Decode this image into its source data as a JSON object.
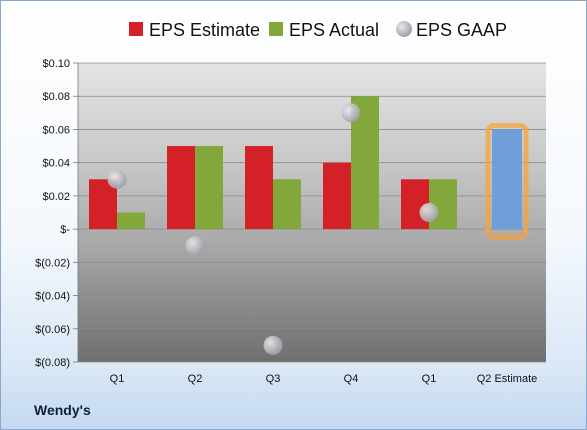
{
  "company": "Wendy's",
  "chart_data": {
    "type": "bar",
    "categories": [
      "Q1",
      "Q2",
      "Q3",
      "Q4",
      "Q1",
      "Q2 Estimate"
    ],
    "series": [
      {
        "name": "EPS Estimate",
        "color": "#d42027",
        "values": [
          0.03,
          0.05,
          0.05,
          0.04,
          0.03,
          null
        ]
      },
      {
        "name": "EPS Actual",
        "color": "#82a83c",
        "values": [
          0.01,
          0.05,
          0.03,
          0.08,
          0.03,
          null
        ]
      },
      {
        "name": "EPS GAAP",
        "color": "#b9bcc2",
        "type": "scatter",
        "values": [
          0.03,
          -0.01,
          -0.07,
          0.07,
          0.01,
          null
        ]
      }
    ],
    "forecast": {
      "category": "Q2 Estimate",
      "value": 0.06,
      "color": "#6f9fd8",
      "highlight": "#f6a33b"
    },
    "y_ticks": [
      "$0.10",
      "$0.08",
      "$0.06",
      "$0.04",
      "$0.02",
      "$-",
      "$(0.02)",
      "$(0.04)",
      "$(0.06)",
      "$(0.08)"
    ],
    "y_tick_values": [
      0.1,
      0.08,
      0.06,
      0.04,
      0.02,
      0,
      -0.02,
      -0.04,
      -0.06,
      -0.08
    ],
    "ylim": [
      -0.08,
      0.1
    ],
    "grid": true,
    "legend_position": "top"
  }
}
